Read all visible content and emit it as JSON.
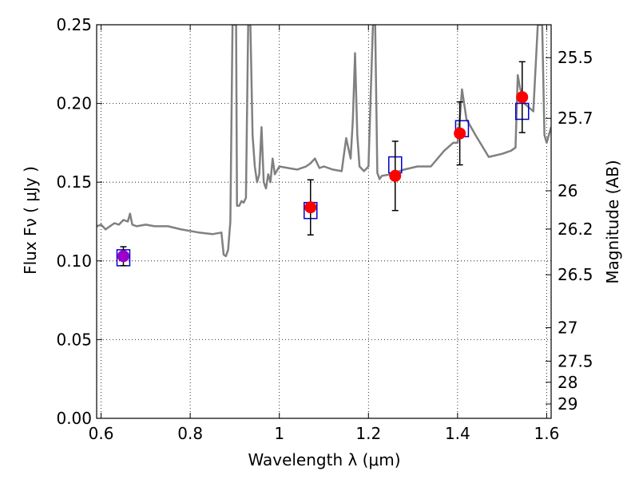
{
  "chart_data": {
    "type": "scatter",
    "xlabel": "Wavelength  λ (μm)",
    "ylabel": "Flux  Fν  ( μJy )",
    "y2label": "Magnitude (AB)",
    "xlim": [
      0.59,
      1.61
    ],
    "ylim": [
      0.0,
      0.25
    ],
    "grid": true,
    "x_ticks": [
      0.6,
      0.8,
      1.0,
      1.2,
      1.4,
      1.6
    ],
    "x_tick_labels": [
      "0.6",
      "0.8",
      "1",
      "1.2",
      "1.4",
      "1.6"
    ],
    "y_ticks": [
      0.0,
      0.05,
      0.1,
      0.15,
      0.2,
      0.25
    ],
    "y_tick_labels": [
      "0.00",
      "0.05",
      "0.10",
      "0.15",
      "0.20",
      "0.25"
    ],
    "mag_ticks": [
      25.5,
      25.7,
      26,
      26.2,
      26.5,
      27,
      27.5,
      28,
      29
    ],
    "mag_tick_labels": [
      "25.5",
      "25.7",
      "26",
      "26.2",
      "26.5",
      "27",
      "27.5",
      "28",
      "29"
    ],
    "series": [
      {
        "marker": "circle",
        "color": "#ff0000",
        "x": [
          0.65,
          1.07,
          1.26,
          1.405,
          1.545
        ],
        "y": [
          0.103,
          0.134,
          0.154,
          0.181,
          0.204
        ],
        "yerr": [
          0.006,
          0.0175,
          0.022,
          0.02,
          0.0225
        ]
      },
      {
        "marker": "circle",
        "color": "#9900cc",
        "x": [
          0.65
        ],
        "y": [
          0.103
        ]
      },
      {
        "marker": "open-square",
        "color": "#0000cc",
        "x": [
          0.65,
          1.07,
          1.26,
          1.41,
          1.545
        ],
        "y": [
          0.102,
          0.132,
          0.161,
          0.184,
          0.195
        ]
      },
      {
        "type": "line",
        "color": "#808080",
        "x": [
          0.59,
          0.6,
          0.61,
          0.62,
          0.63,
          0.64,
          0.65,
          0.66,
          0.665,
          0.67,
          0.68,
          0.7,
          0.72,
          0.75,
          0.78,
          0.8,
          0.82,
          0.85,
          0.87,
          0.875,
          0.88,
          0.885,
          0.89,
          0.895,
          0.9,
          0.903,
          0.905,
          0.91,
          0.915,
          0.92,
          0.925,
          0.93,
          0.935,
          0.94,
          0.945,
          0.95,
          0.955,
          0.96,
          0.965,
          0.97,
          0.975,
          0.98,
          0.985,
          0.99,
          1.0,
          1.02,
          1.04,
          1.06,
          1.07,
          1.08,
          1.09,
          1.1,
          1.12,
          1.14,
          1.15,
          1.16,
          1.165,
          1.17,
          1.175,
          1.18,
          1.19,
          1.2,
          1.21,
          1.215,
          1.22,
          1.225,
          1.23,
          1.25,
          1.28,
          1.31,
          1.34,
          1.37,
          1.39,
          1.4,
          1.405,
          1.41,
          1.42,
          1.44,
          1.47,
          1.5,
          1.52,
          1.53,
          1.535,
          1.54,
          1.55,
          1.57,
          1.58,
          1.585,
          1.59,
          1.595,
          1.6,
          1.61
        ],
        "y": [
          0.122,
          0.123,
          0.12,
          0.122,
          0.124,
          0.123,
          0.126,
          0.125,
          0.13,
          0.123,
          0.122,
          0.123,
          0.122,
          0.122,
          0.12,
          0.119,
          0.118,
          0.117,
          0.118,
          0.104,
          0.103,
          0.107,
          0.125,
          0.25,
          0.25,
          0.25,
          0.135,
          0.135,
          0.138,
          0.137,
          0.14,
          0.25,
          0.25,
          0.18,
          0.16,
          0.15,
          0.155,
          0.185,
          0.15,
          0.146,
          0.155,
          0.15,
          0.165,
          0.155,
          0.16,
          0.159,
          0.158,
          0.16,
          0.162,
          0.165,
          0.159,
          0.16,
          0.158,
          0.157,
          0.178,
          0.165,
          0.19,
          0.232,
          0.18,
          0.16,
          0.157,
          0.16,
          0.25,
          0.25,
          0.156,
          0.152,
          0.154,
          0.155,
          0.158,
          0.16,
          0.16,
          0.17,
          0.175,
          0.175,
          0.19,
          0.209,
          0.19,
          0.18,
          0.166,
          0.168,
          0.17,
          0.172,
          0.218,
          0.21,
          0.2,
          0.195,
          0.25,
          0.25,
          0.25,
          0.18,
          0.175,
          0.185
        ]
      }
    ]
  }
}
